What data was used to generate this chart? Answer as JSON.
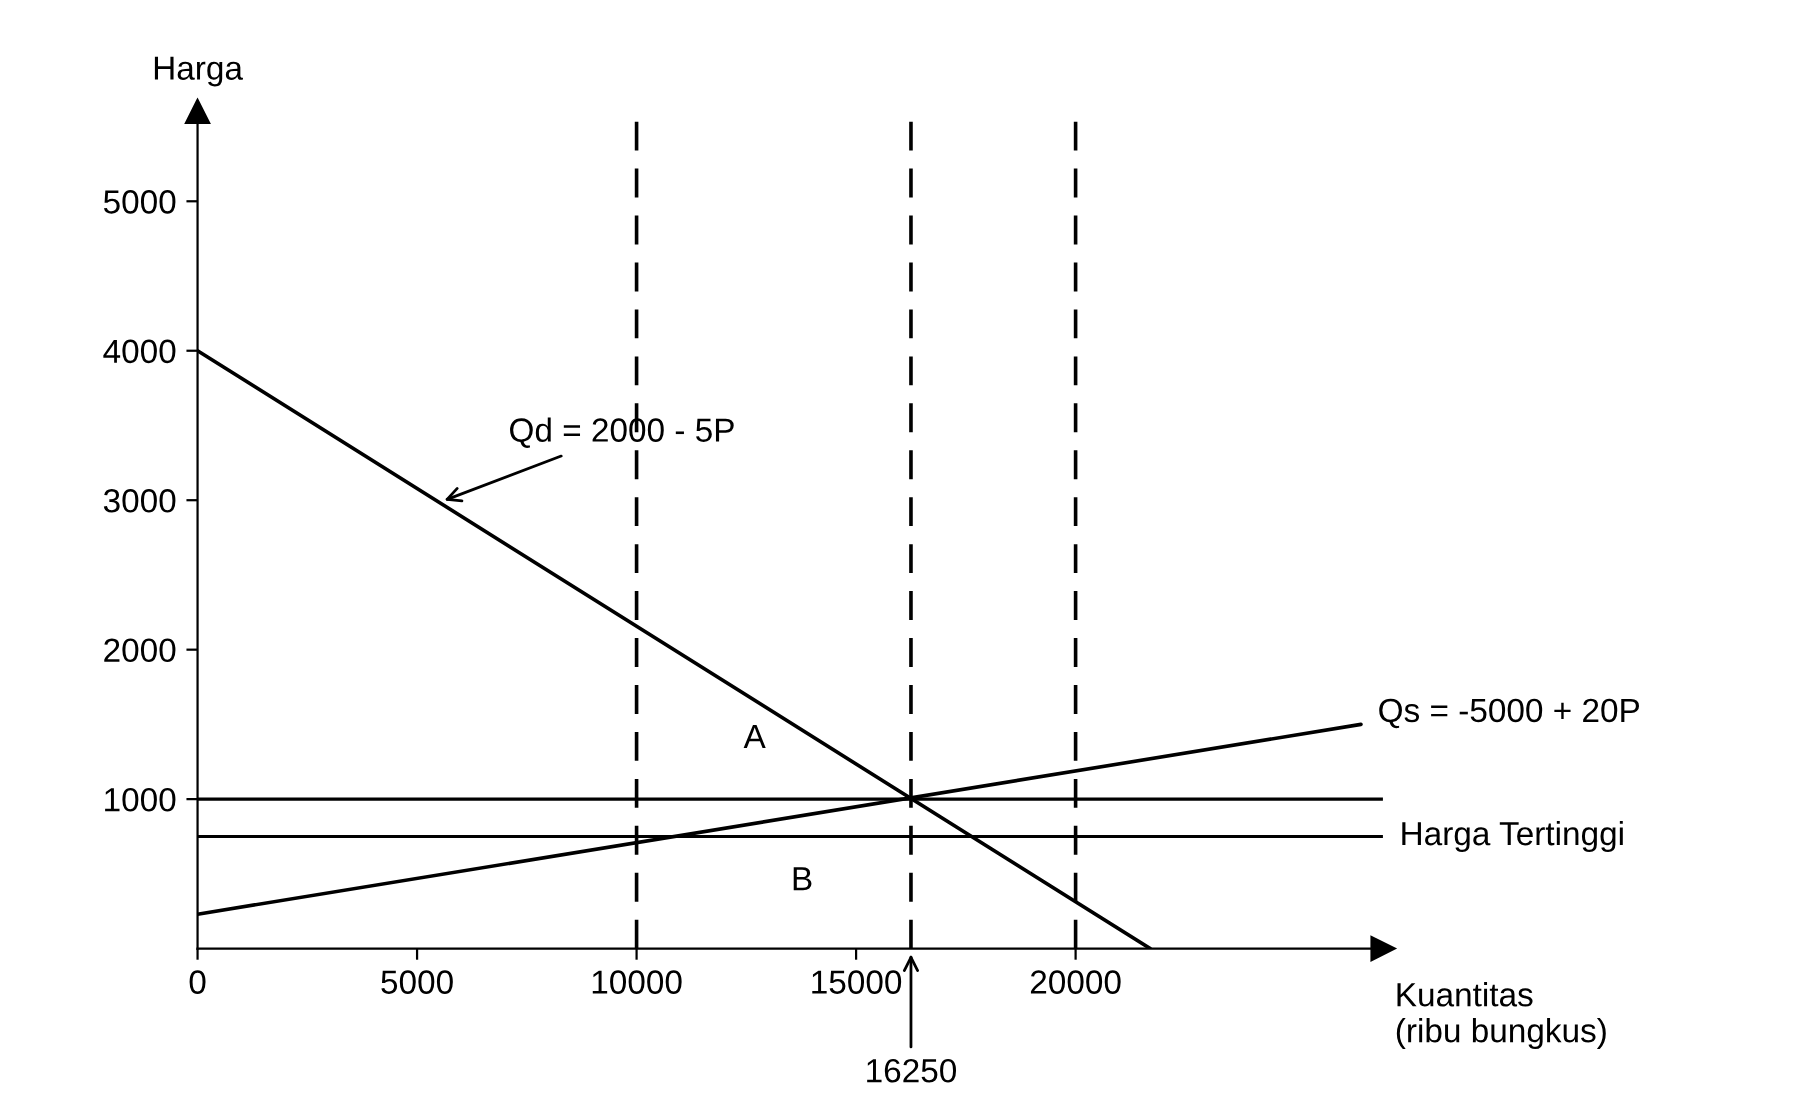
{
  "chart_data": {
    "type": "line",
    "xlabel": "Kuantitas\n(ribu bungkus)",
    "ylabel": "Harga",
    "xlim": [
      0,
      27000
    ],
    "ylim": [
      0,
      5600
    ],
    "xticks": [
      0,
      5000,
      10000,
      15000,
      20000
    ],
    "yticks": [
      1000,
      2000,
      3000,
      4000,
      5000
    ],
    "series": [
      {
        "color": "#000000",
        "x": [
          0,
          21700
        ],
        "values": [
          4000,
          0
        ]
      },
      {
        "color": "#000000",
        "x": [
          0,
          26500
        ],
        "values": [
          230,
          1500
        ]
      }
    ],
    "ref_lines": [
      {
        "axis": "y",
        "value": 1000,
        "color": "#000000",
        "line_style": "solid"
      },
      {
        "axis": "y",
        "value": 750,
        "label": "Harga Tertinggi",
        "color": "#000000",
        "line_style": "solid"
      },
      {
        "axis": "x",
        "value": 10000,
        "color": "#000000",
        "line_style": "dashed"
      },
      {
        "axis": "x",
        "value": 16250,
        "color": "#000000",
        "line_style": "dashed"
      },
      {
        "axis": "x",
        "value": 20000,
        "color": "#000000",
        "line_style": "dashed"
      }
    ],
    "annotations": [
      {
        "text": "Qd = 2000 - 5P",
        "x": 5500,
        "y": 2985
      },
      {
        "text": "Qs = -5000 + 20P",
        "x": 26500,
        "y": 1500
      },
      "A",
      "B",
      {
        "text": "16250",
        "x": 16250,
        "y": 0
      }
    ],
    "grid": false,
    "legend": false,
    "marker": "none",
    "line_style": "solid"
  }
}
